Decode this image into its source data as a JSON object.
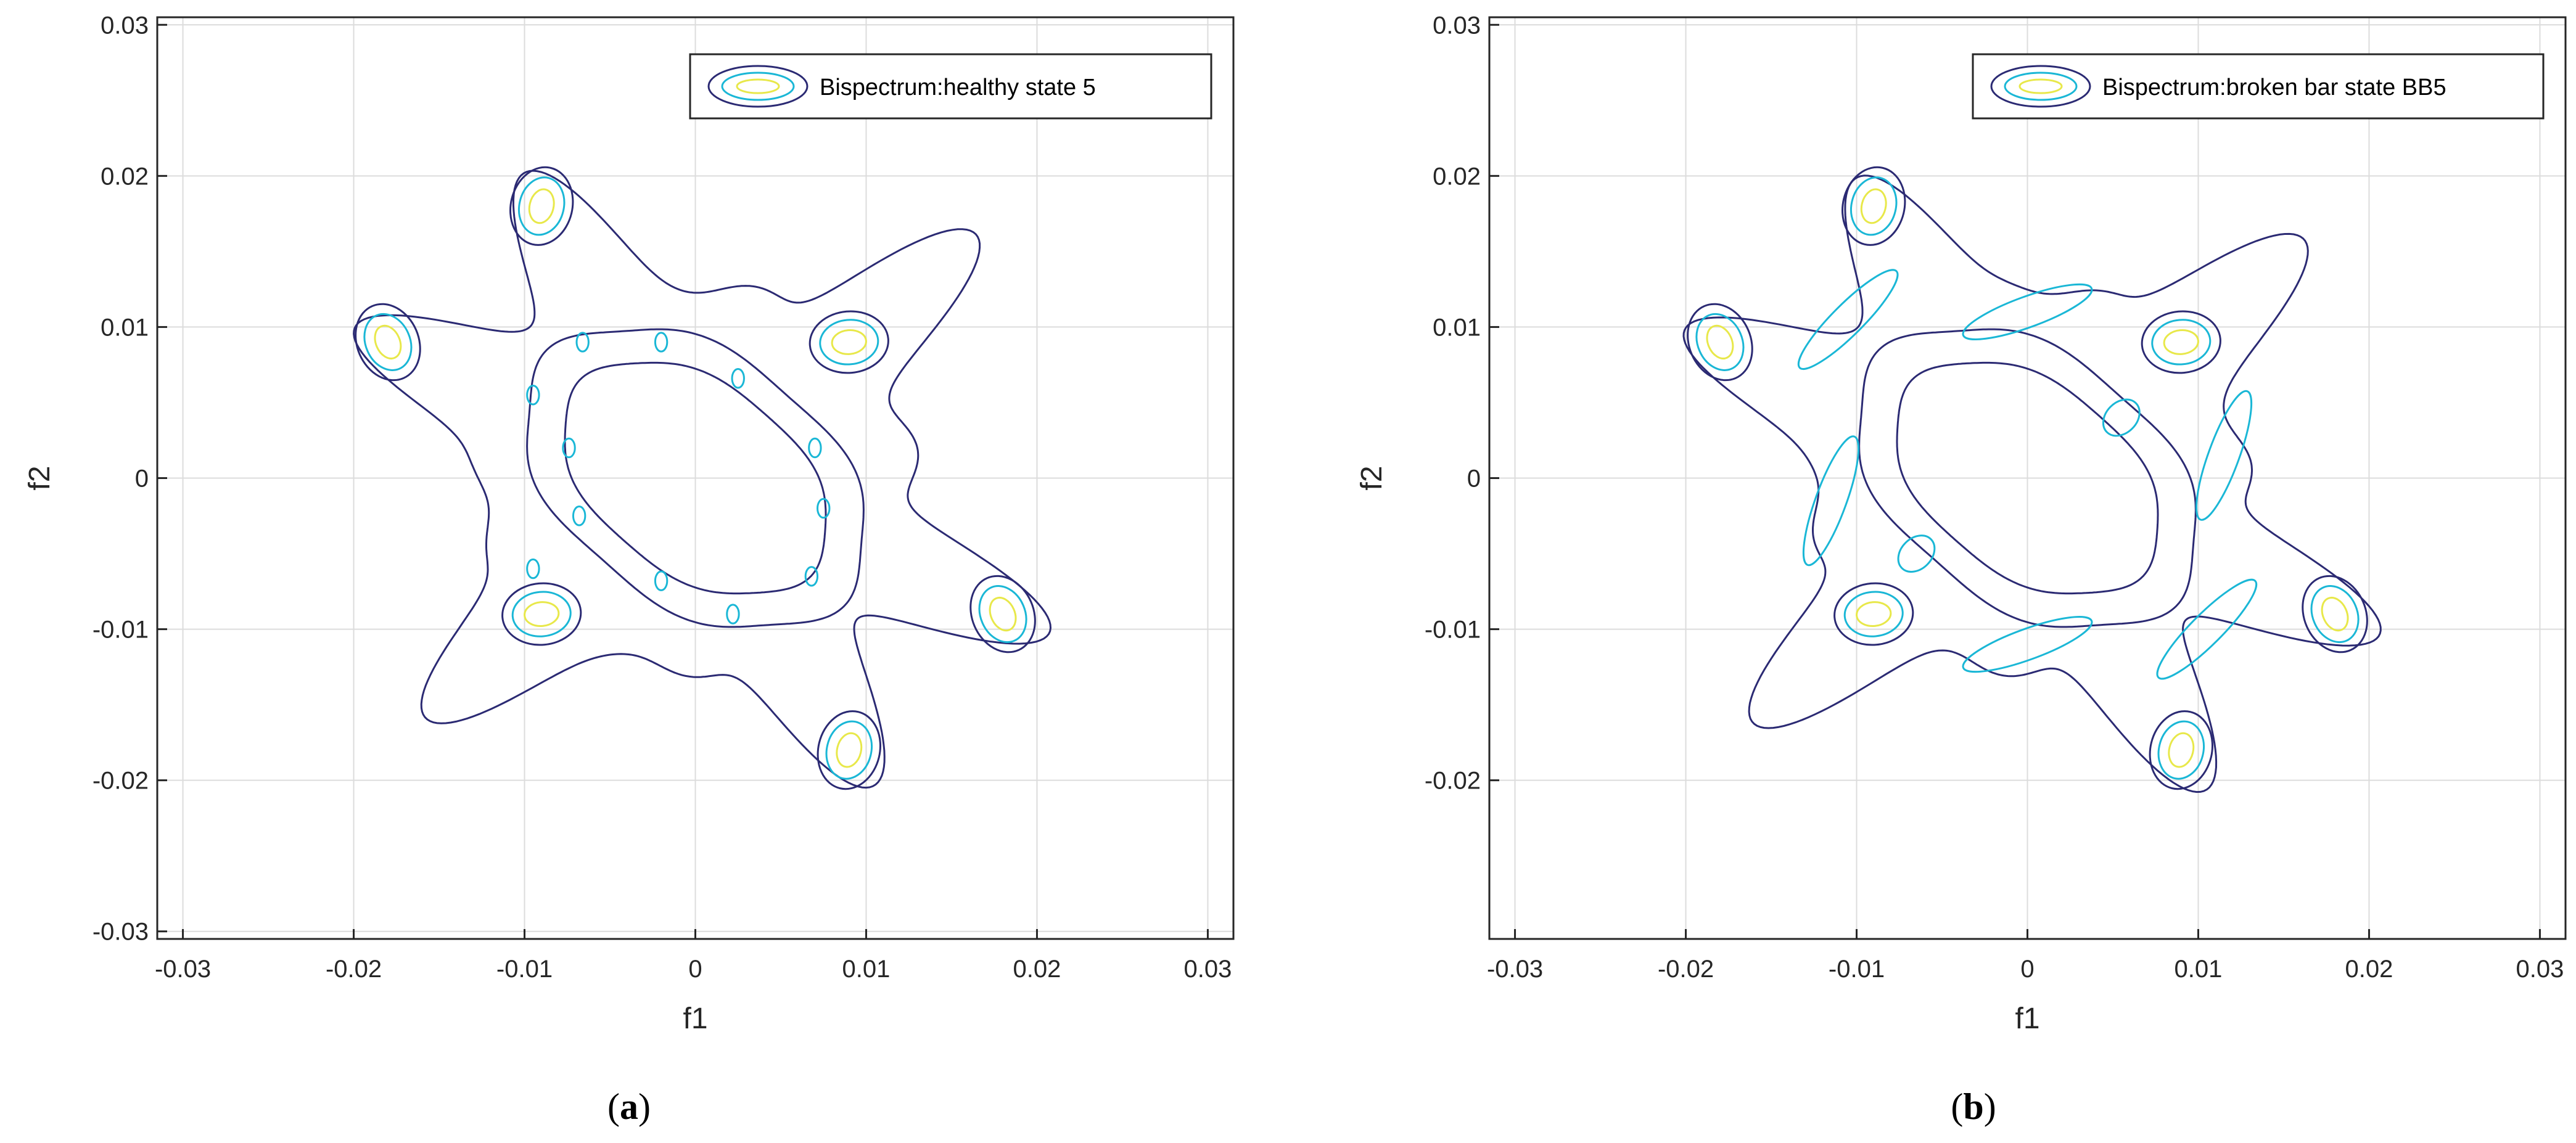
{
  "chart_data": [
    {
      "type": "contour",
      "panel_label": "a",
      "legend": "Bispectrum:healthy state 5",
      "legend_placement": "top-right",
      "xlabel": "f1",
      "ylabel": "f2",
      "xlim": [
        -0.0315,
        0.0315
      ],
      "ylim": [
        -0.0305,
        0.0305
      ],
      "xticks": [
        -0.03,
        -0.02,
        -0.01,
        0,
        0.01,
        0.02,
        0.03
      ],
      "xtick_labels": [
        "-0.03",
        "-0.02",
        "-0.01",
        "0",
        "0.01",
        "0.02",
        "0.03"
      ],
      "yticks": [
        -0.03,
        -0.02,
        -0.01,
        0,
        0.01,
        0.02,
        0.03
      ],
      "ytick_labels": [
        "-0.03",
        "-0.02",
        "-0.01",
        "0",
        "0.01",
        "0.02",
        "0.03"
      ],
      "grid": true,
      "peaks": [
        [
          0.009,
          0.009
        ],
        [
          -0.009,
          -0.009
        ],
        [
          0.018,
          -0.009
        ],
        [
          -0.018,
          0.009
        ],
        [
          -0.009,
          0.018
        ],
        [
          0.009,
          -0.018
        ]
      ],
      "contour_levels": [
        "low",
        "medium",
        "high"
      ],
      "level_colors": [
        "#2b2a73",
        "#1ab7d6",
        "#e8e84a"
      ]
    },
    {
      "type": "contour",
      "panel_label": "b",
      "legend": "Bispectrum:broken bar state BB5",
      "legend_placement": "top-right",
      "xlabel": "f1",
      "ylabel": "f2",
      "xlim": [
        -0.0315,
        0.0315
      ],
      "ylim": [
        -0.0305,
        0.0305
      ],
      "xticks": [
        -0.03,
        -0.02,
        -0.01,
        0,
        0.01,
        0.02,
        0.03
      ],
      "xtick_labels": [
        "-0.03",
        "-0.02",
        "-0.01",
        "0",
        "0.01",
        "0.02",
        "0.03"
      ],
      "yticks": [
        -0.02,
        -0.01,
        0,
        0.01,
        0.02,
        0.03
      ],
      "ytick_labels": [
        "-0.02",
        "-0.01",
        "0",
        "0.01",
        "0.02",
        "0.03"
      ],
      "grid": true,
      "peaks": [
        [
          0.009,
          0.009
        ],
        [
          -0.009,
          -0.009
        ],
        [
          0.018,
          -0.009
        ],
        [
          -0.018,
          0.009
        ],
        [
          -0.009,
          0.018
        ],
        [
          0.009,
          -0.018
        ]
      ],
      "contour_levels": [
        "low",
        "medium",
        "high"
      ],
      "level_colors": [
        "#2b2a73",
        "#1ab7d6",
        "#e8e84a"
      ]
    }
  ],
  "captions": [
    "(a)",
    "(b)"
  ]
}
